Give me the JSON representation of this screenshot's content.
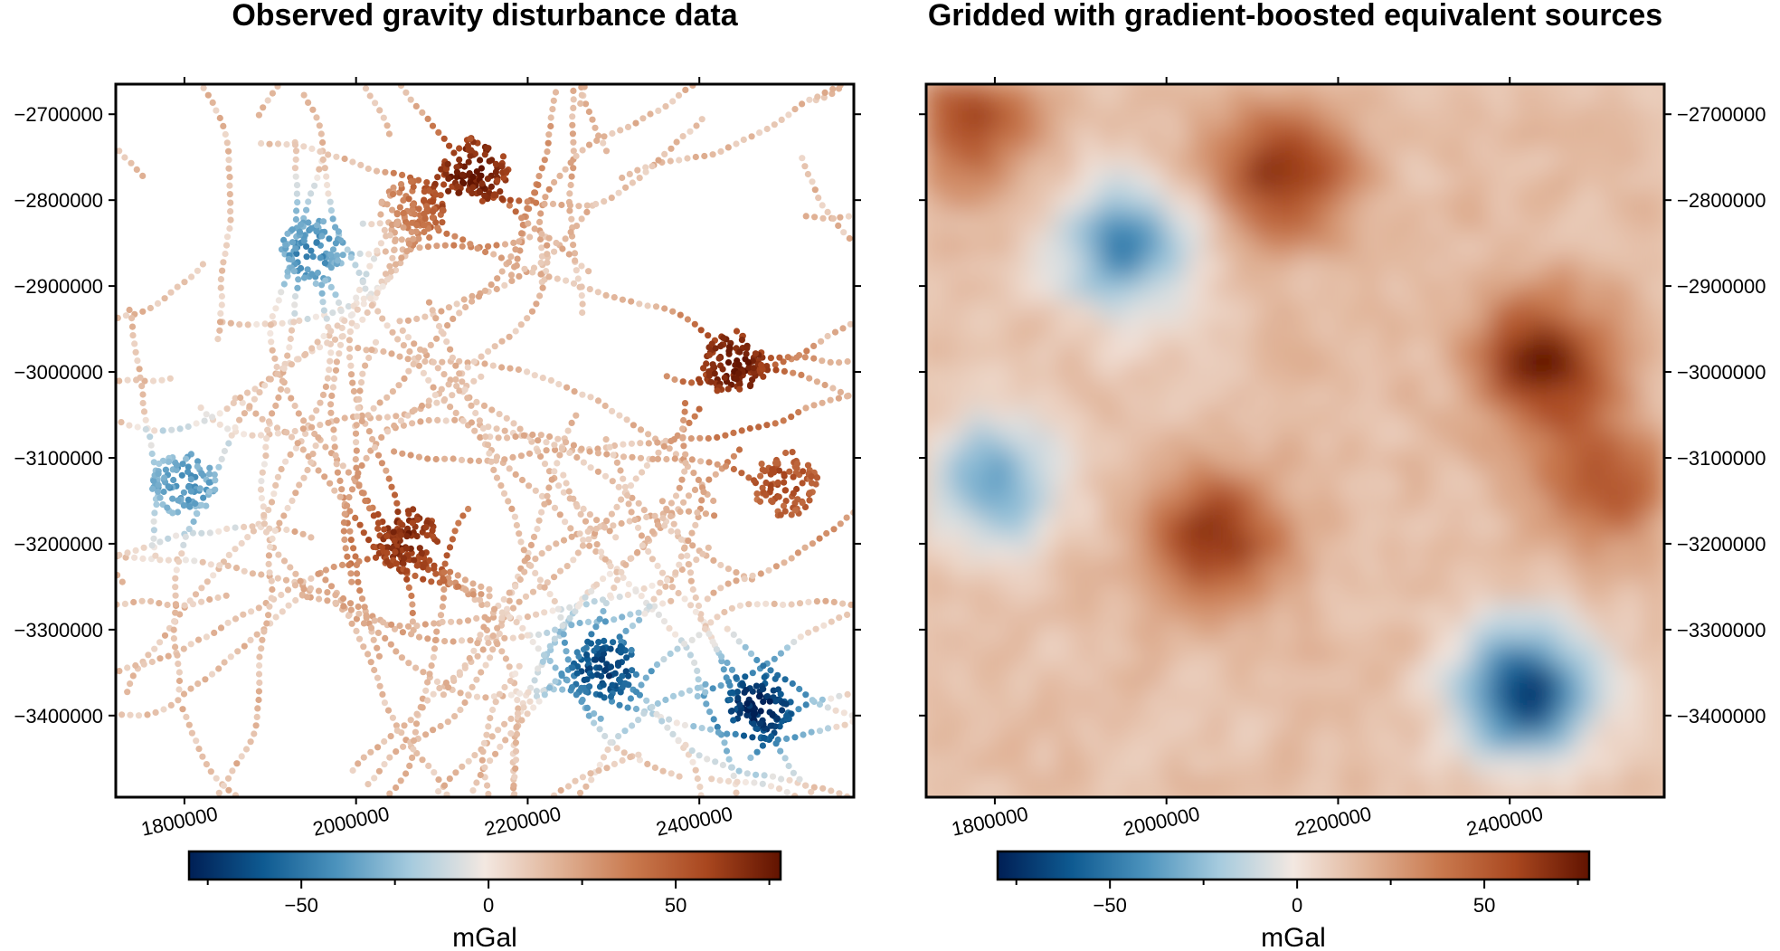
{
  "panels": [
    {
      "title": "Observed gravity disturbance data",
      "kind": "points",
      "y_axis_side": "left"
    },
    {
      "title": "Gridded with gradient-boosted equivalent sources",
      "kind": "grid",
      "y_axis_side": "right"
    }
  ],
  "axes": {
    "x_ticks": [
      "1800000",
      "2000000",
      "2200000",
      "2400000"
    ],
    "x_tick_values": [
      1800000,
      2000000,
      2200000,
      2400000
    ],
    "y_ticks": [
      "−2700000",
      "−2800000",
      "−2900000",
      "−3000000",
      "−3100000",
      "−3200000",
      "−3300000",
      "−3400000"
    ],
    "y_tick_values": [
      -2700000,
      -2800000,
      -2900000,
      -3000000,
      -3100000,
      -3200000,
      -3300000,
      -3400000
    ],
    "x_range": [
      1720000,
      2580000
    ],
    "y_range": [
      -3495000,
      -2665000
    ]
  },
  "colorbar": {
    "label": "mGal",
    "ticks": [
      "−50",
      "0",
      "50"
    ],
    "tick_values": [
      -50,
      0,
      50
    ],
    "range": [
      -80,
      78
    ],
    "colormap": "vik",
    "colors": [
      "#001F55",
      "#0E5A91",
      "#4C93BD",
      "#A6CBDE",
      "#F3E8E1",
      "#E0B296",
      "#C9794E",
      "#A9471F",
      "#611300"
    ]
  },
  "chart_data": [
    {
      "type": "scatter",
      "title": "Observed gravity disturbance data",
      "xlabel": "",
      "ylabel": "",
      "xlim": [
        1720000,
        2580000
      ],
      "ylim": [
        -3495000,
        -2665000
      ],
      "value_unit": "mGal",
      "anomalies": [
        {
          "x": 1950000,
          "y": -2860000,
          "value": -45
        },
        {
          "x": 2065000,
          "y": -2815000,
          "value": 30
        },
        {
          "x": 1800000,
          "y": -3130000,
          "value": -40
        },
        {
          "x": 2060000,
          "y": -3195000,
          "value": 70
        },
        {
          "x": 2290000,
          "y": -3345000,
          "value": -70
        },
        {
          "x": 2470000,
          "y": -3390000,
          "value": -80
        },
        {
          "x": 2440000,
          "y": -2990000,
          "value": 75
        },
        {
          "x": 2140000,
          "y": -2765000,
          "value": 72
        },
        {
          "x": 2500000,
          "y": -3130000,
          "value": 55
        }
      ]
    },
    {
      "type": "heatmap",
      "title": "Gridded with gradient-boosted equivalent sources",
      "xlabel": "",
      "ylabel": "",
      "xlim": [
        1720000,
        2580000
      ],
      "ylim": [
        -3495000,
        -2665000
      ],
      "value_unit": "mGal",
      "anomalies": [
        {
          "x": 1950000,
          "y": -2860000,
          "value": -45
        },
        {
          "x": 1800000,
          "y": -3130000,
          "value": -40
        },
        {
          "x": 2060000,
          "y": -3195000,
          "value": 70
        },
        {
          "x": 2420000,
          "y": -3375000,
          "value": -75
        },
        {
          "x": 2440000,
          "y": -2990000,
          "value": 78
        },
        {
          "x": 2140000,
          "y": -2765000,
          "value": 72
        },
        {
          "x": 1770000,
          "y": -2710000,
          "value": 60
        },
        {
          "x": 2510000,
          "y": -3130000,
          "value": 55
        }
      ]
    }
  ]
}
